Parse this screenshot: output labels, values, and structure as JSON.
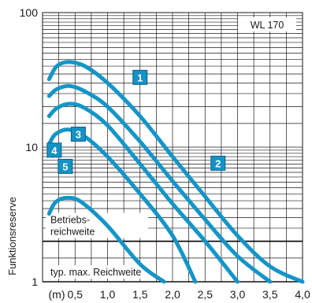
{
  "chart_data": {
    "type": "line",
    "title": "",
    "legend_label": "WL 170",
    "ylabel": "Funktionsreserve",
    "x_unit": "(m)",
    "x_ticks": [
      "0,5",
      "1,0",
      "1,5",
      "2,0",
      "2,5",
      "3,0",
      "3,5",
      "4,0"
    ],
    "x_tick_values": [
      0.5,
      1.0,
      1.5,
      2.0,
      2.5,
      3.0,
      3.5,
      4.0
    ],
    "y_ticks": [
      "1",
      "10",
      "100"
    ],
    "y_tick_values": [
      1,
      10,
      100
    ],
    "xlim": [
      0,
      4.0
    ],
    "ylim": [
      1,
      100
    ],
    "y_scale": "log",
    "grid": true,
    "reference_lines": [
      {
        "value": 2,
        "label_lines": [
          "Betriebs-",
          "reichweite"
        ]
      },
      {
        "value": 1,
        "label_lines": [
          "typ. max. Reichweite"
        ]
      }
    ],
    "series": [
      {
        "label": "1",
        "label_at": [
          1.5,
          33
        ],
        "points": [
          [
            0.1,
            32
          ],
          [
            0.22,
            40
          ],
          [
            0.4,
            43
          ],
          [
            0.65,
            40
          ],
          [
            1.0,
            30
          ],
          [
            1.5,
            17
          ],
          [
            2.0,
            8.5
          ],
          [
            2.5,
            4.3
          ],
          [
            3.0,
            2.2
          ],
          [
            3.5,
            1.3
          ],
          [
            4.0,
            1.0
          ]
        ]
      },
      {
        "label": "2",
        "label_at": [
          2.7,
          7.6
        ],
        "points": [
          [
            0.1,
            24
          ],
          [
            0.22,
            27
          ],
          [
            0.42,
            28.5
          ],
          [
            0.65,
            26
          ],
          [
            1.0,
            20
          ],
          [
            1.5,
            11
          ],
          [
            2.0,
            5.6
          ],
          [
            2.5,
            2.9
          ],
          [
            3.0,
            1.55
          ],
          [
            3.5,
            1.0
          ]
        ]
      },
      {
        "label": "3",
        "label_at": [
          0.55,
          12.5
        ],
        "points": [
          [
            0.1,
            17
          ],
          [
            0.22,
            19.5
          ],
          [
            0.42,
            21
          ],
          [
            0.65,
            19.5
          ],
          [
            1.0,
            14.5
          ],
          [
            1.5,
            7.5
          ],
          [
            2.0,
            3.8
          ],
          [
            2.5,
            2.0
          ],
          [
            3.0,
            1.0
          ]
        ]
      },
      {
        "label": "4",
        "label_at": [
          0.18,
          9.5
        ],
        "points": [
          [
            0.1,
            10.5
          ],
          [
            0.2,
            12.5
          ],
          [
            0.4,
            13.5
          ],
          [
            0.65,
            12
          ],
          [
            1.0,
            8.5
          ],
          [
            1.5,
            4.5
          ],
          [
            2.0,
            2.2
          ],
          [
            2.35,
            1.0
          ]
        ]
      },
      {
        "label": "5",
        "label_at": [
          0.35,
          7.2
        ],
        "points": [
          [
            0.1,
            3.2
          ],
          [
            0.2,
            3.9
          ],
          [
            0.38,
            4.2
          ],
          [
            0.6,
            3.9
          ],
          [
            1.0,
            2.6
          ],
          [
            1.5,
            1.35
          ],
          [
            1.87,
            1.0
          ]
        ]
      }
    ]
  }
}
